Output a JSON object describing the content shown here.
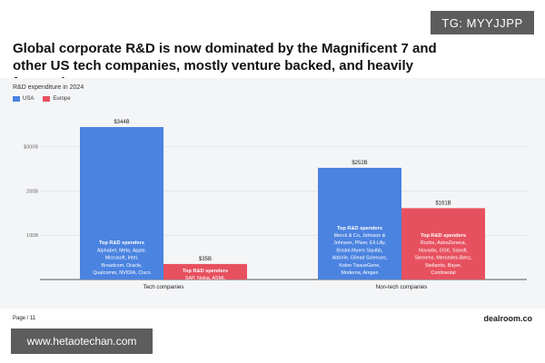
{
  "badge": "TG: MYYJJPP",
  "headline": "Global corporate R&D is now dominated by the Magnificent 7 and other US tech companies, mostly venture backed, and heavily focused on AI",
  "footer": {
    "page": "Page / 11",
    "brand": "dealroom.co",
    "url": "www.hetaotechan.com"
  },
  "colors": {
    "usa": "#4b83e0",
    "europe": "#e7515f",
    "panel": "#f4f5f7",
    "grid": "#d9dce1"
  },
  "chart_data": {
    "type": "bar",
    "title": "R&D expenditure in 2024",
    "xlabel": "",
    "ylabel": "",
    "ylim": [
      0,
      344
    ],
    "yticks": [
      {
        "value": 100,
        "label": "100B"
      },
      {
        "value": 200,
        "label": "200B"
      },
      {
        "value": 300,
        "label": "$300B"
      }
    ],
    "legend_position": "top-left",
    "grid": true,
    "categories": [
      "Tech companies",
      "Non-tech companies"
    ],
    "series": [
      {
        "name": "USA",
        "values": [
          344,
          252
        ],
        "labels": [
          "$344B",
          "$252B"
        ],
        "notes": [
          {
            "heading": "Top R&D spenders",
            "body": [
              "Alphabet, Meta, Apple,",
              "Microsoft, Intel,",
              "Broadcom, Oracle,",
              "Qualcomm, NVIDIA, Cisco"
            ]
          },
          {
            "heading": "Top R&D spenders",
            "body": [
              "Merck & Co, Johnson &",
              "Johnson, Pfizer, Eli Lilly,",
              "Bristol-Myers Squibb,",
              "AbbVie, Gilead Sciences,",
              "Kolon TissueGene,",
              "Moderna, Amgen"
            ]
          }
        ]
      },
      {
        "name": "Europe",
        "values": [
          35,
          161
        ],
        "labels": [
          "$35B",
          "$161B"
        ],
        "notes": [
          {
            "heading": "Top R&D spenders",
            "body": [
              "SAP, Nokia, ASML"
            ]
          },
          {
            "heading": "Top R&D spenders",
            "body": [
              "Roche, AstraZeneca,",
              "Novartis, GSK, Sanofi,",
              "Siemens, Mercedes-Benz,",
              "Stellantis, Bayer,",
              "Continental"
            ]
          }
        ]
      }
    ]
  }
}
